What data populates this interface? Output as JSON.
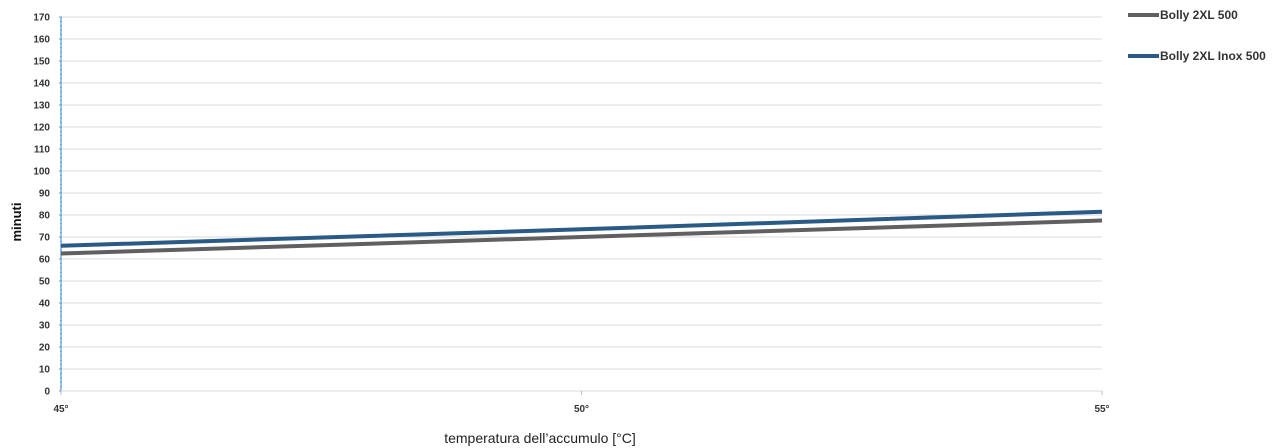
{
  "chart_data": {
    "type": "line",
    "x": [
      "45°",
      "50°",
      "55°"
    ],
    "series": [
      {
        "name": "Bolly 2XL 500",
        "values": [
          62.5,
          70,
          77.5
        ],
        "color": "#606060"
      },
      {
        "name": "Bolly 2XL Inox 500",
        "values": [
          66,
          73.5,
          81.5
        ],
        "color": "#2a5a86"
      }
    ],
    "xlabel": "temperatura dell’accumulo [°C]",
    "ylabel": "minuti",
    "ylim": [
      0,
      170
    ],
    "yticks": [
      0,
      10,
      20,
      30,
      40,
      50,
      60,
      70,
      80,
      90,
      100,
      110,
      120,
      130,
      140,
      150,
      160,
      170
    ],
    "grid": true,
    "legend_position": "top-right",
    "axis_color": "#5b9bd5",
    "grid_color": "#d9d9d9"
  }
}
